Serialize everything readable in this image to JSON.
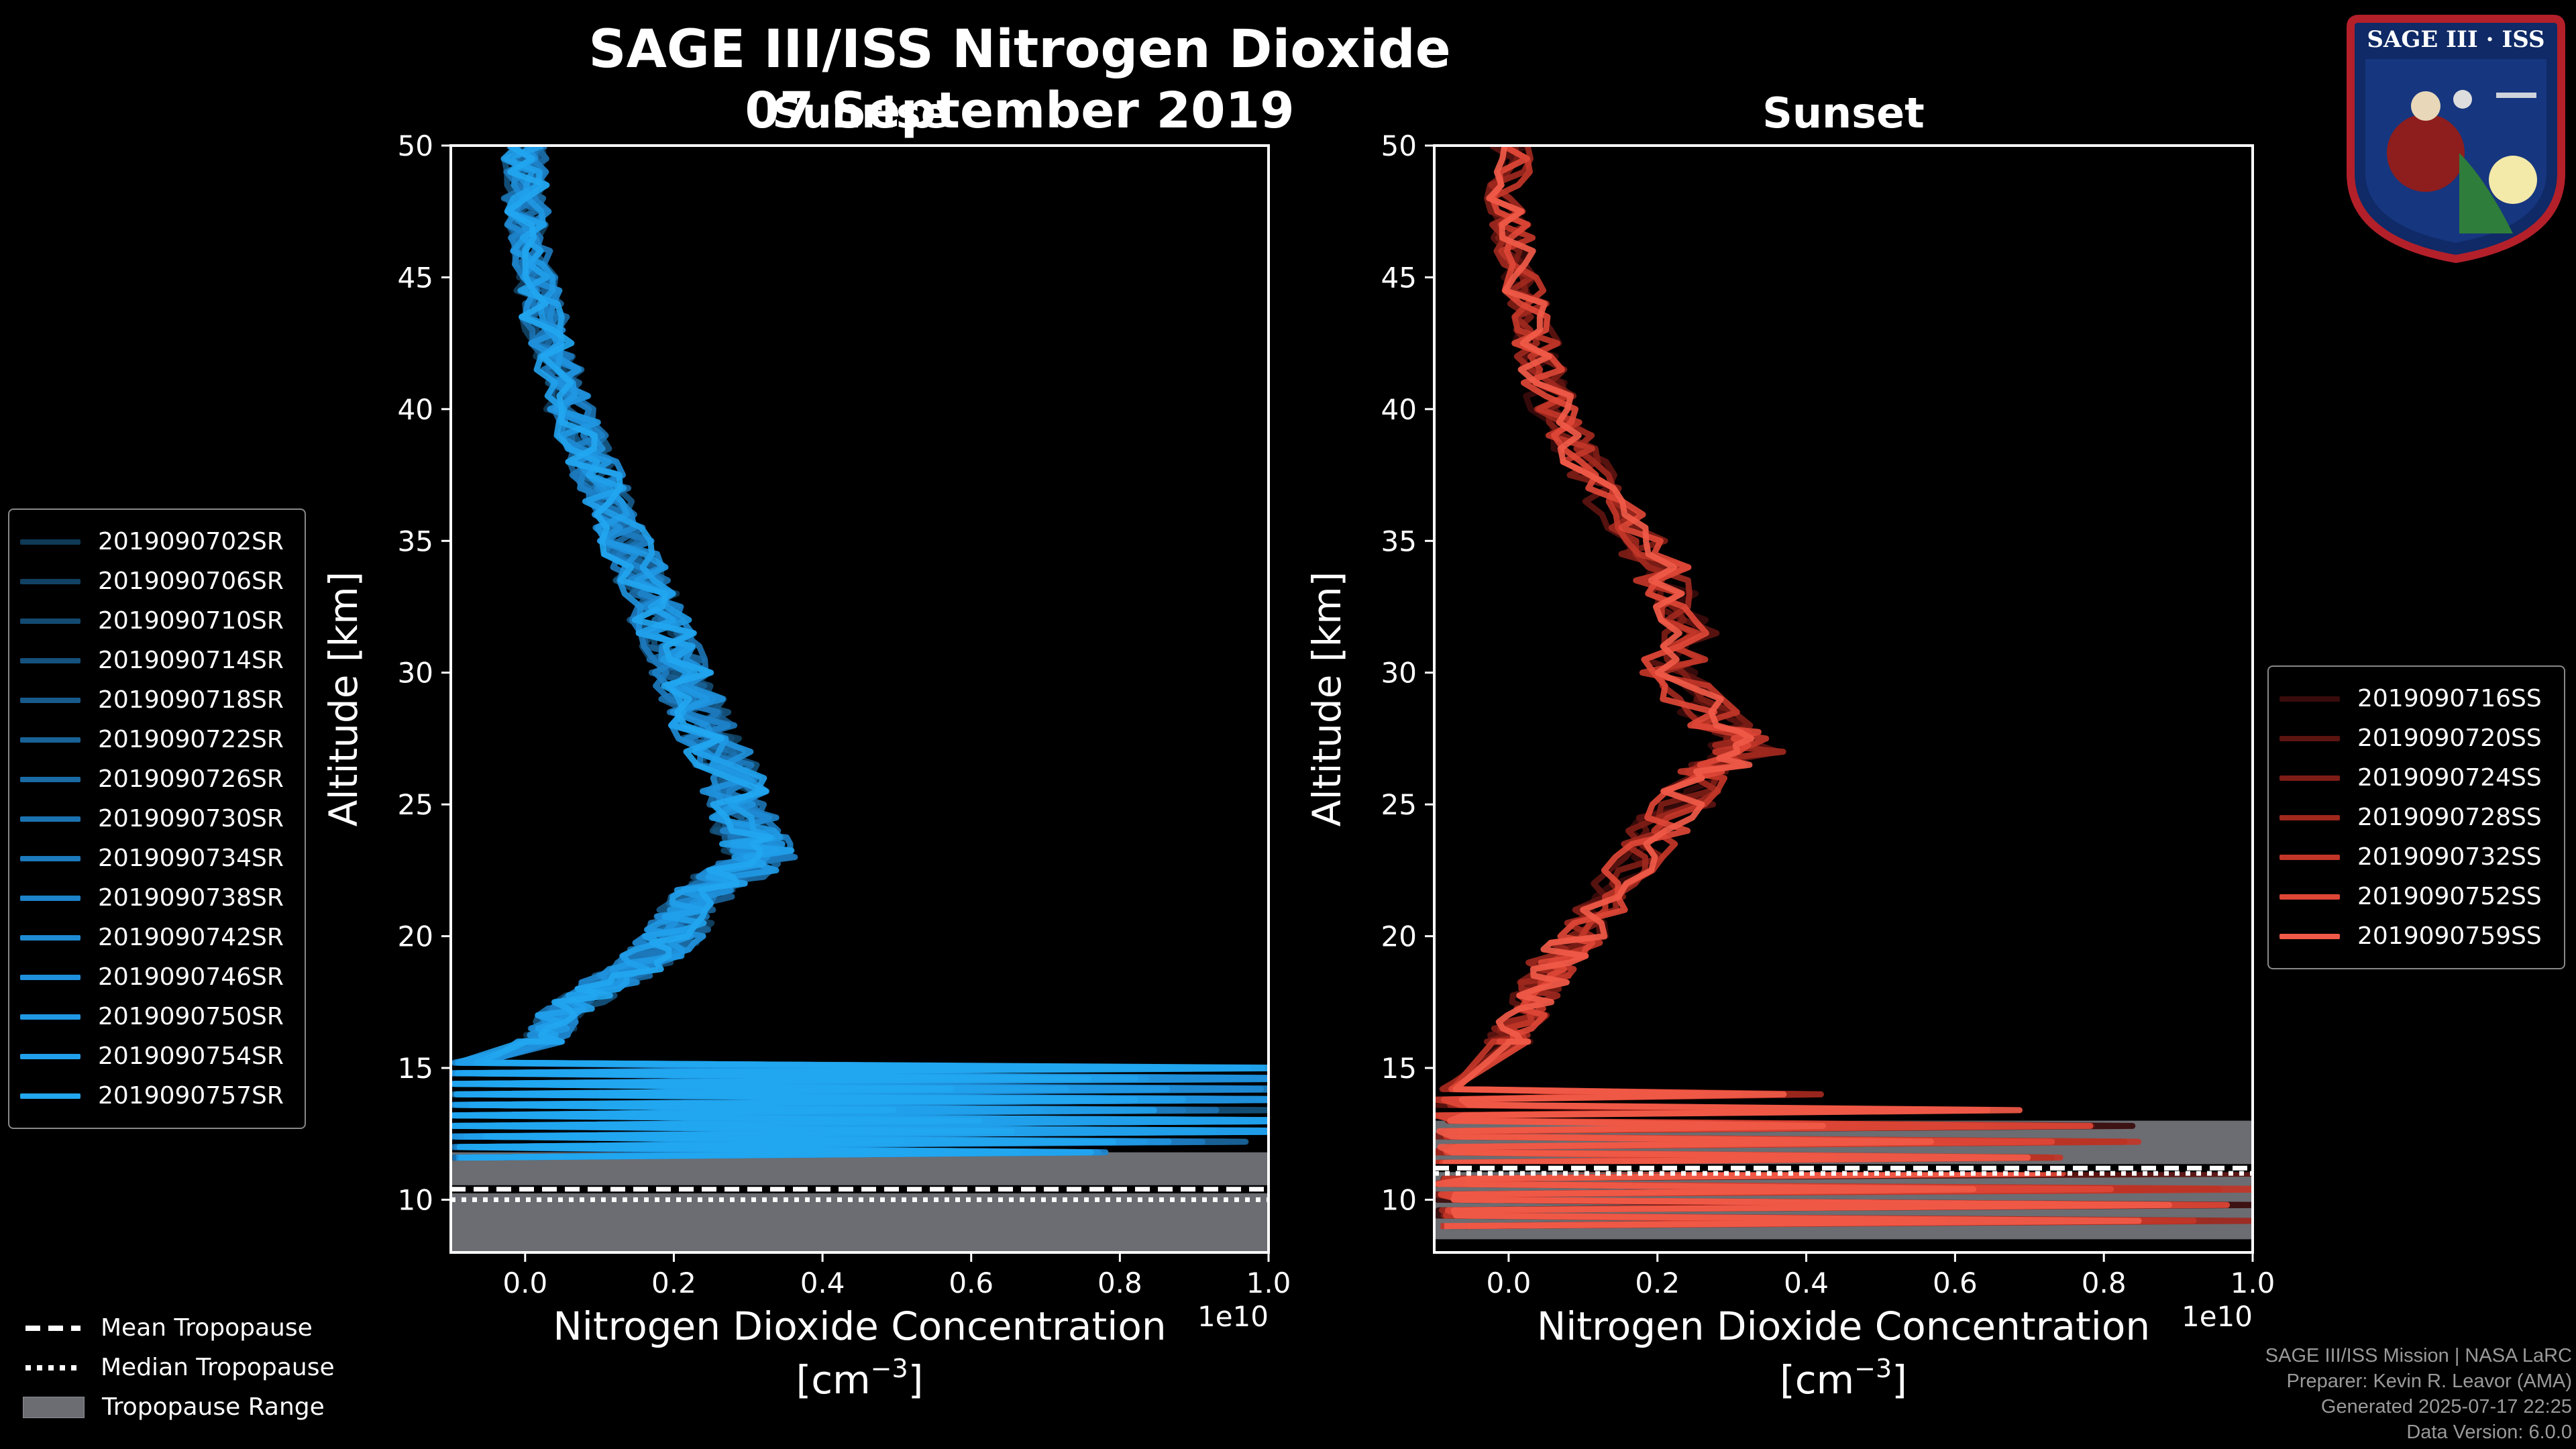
{
  "header": {
    "title": "SAGE III/ISS Nitrogen Dioxide",
    "date": "07 September 2019",
    "left_label": "Sunrise",
    "right_label": "Sunset"
  },
  "logo": {
    "text": "SAGE III · ISS"
  },
  "legend_sunrise": [
    {
      "label": "2019090702SR",
      "color": "#0f3a57"
    },
    {
      "label": "2019090706SR",
      "color": "#114263"
    },
    {
      "label": "2019090710SR",
      "color": "#134a70"
    },
    {
      "label": "2019090714SR",
      "color": "#15527d"
    },
    {
      "label": "2019090718SR",
      "color": "#175a8a"
    },
    {
      "label": "2019090722SR",
      "color": "#196297"
    },
    {
      "label": "2019090726SR",
      "color": "#1a6aa4"
    },
    {
      "label": "2019090730SR",
      "color": "#1b72b1"
    },
    {
      "label": "2019090734SR",
      "color": "#1c7abd"
    },
    {
      "label": "2019090738SR",
      "color": "#1d82c9"
    },
    {
      "label": "2019090742SR",
      "color": "#1e8ad3"
    },
    {
      "label": "2019090746SR",
      "color": "#1f91dc"
    },
    {
      "label": "2019090750SR",
      "color": "#2098e3"
    },
    {
      "label": "2019090754SR",
      "color": "#219fea"
    },
    {
      "label": "2019090757SR",
      "color": "#22a6f0"
    }
  ],
  "legend_sunset": [
    {
      "label": "2019090716SS",
      "color": "#3a0b0b"
    },
    {
      "label": "2019090720SS",
      "color": "#5c1410"
    },
    {
      "label": "2019090724SS",
      "color": "#7e1d16"
    },
    {
      "label": "2019090728SS",
      "color": "#a0281e"
    },
    {
      "label": "2019090732SS",
      "color": "#c23628"
    },
    {
      "label": "2019090752SS",
      "color": "#de4636"
    },
    {
      "label": "2019090759SS",
      "color": "#f15a48"
    }
  ],
  "legend_tropopause": {
    "mean": "Mean Tropopause",
    "median": "Median Tropopause",
    "range": "Tropopause Range"
  },
  "footer": {
    "line1": "SAGE III/ISS Mission | NASA LaRC",
    "line2": "Preparer: Kevin R. Leavor (AMA)",
    "line3": "Generated 2025-07-17 22:25",
    "line4": "Data Version: 6.0.0"
  },
  "chart_data": [
    {
      "type": "line",
      "title": "Sunrise",
      "xlabel": "Nitrogen Dioxide Concentration",
      "xunit_base": "[cm",
      "xunit_exp": "−3",
      "xunit_close": "]",
      "ylabel": "Altitude [km]",
      "offset_text": "1e10",
      "xlim": [
        -0.1,
        1.0
      ],
      "ylim": [
        8,
        50
      ],
      "xticks": [
        "0.0",
        "0.2",
        "0.4",
        "0.6",
        "0.8",
        "1.0"
      ],
      "xtick_values": [
        0.0,
        0.2,
        0.4,
        0.6,
        0.8,
        1.0
      ],
      "yticks": [
        10,
        15,
        20,
        25,
        30,
        35,
        40,
        45,
        50
      ],
      "tropopause": {
        "mean": 10.4,
        "median": 10.0,
        "range": [
          8,
          11.8
        ]
      },
      "profile_altitudes": [
        50,
        48,
        46,
        44,
        42,
        40,
        38,
        36,
        34,
        32,
        30,
        28,
        26,
        24,
        23,
        22,
        21,
        20,
        19,
        18,
        17,
        16
      ],
      "profile_values": [
        0.0,
        0.0,
        0.01,
        0.02,
        0.04,
        0.06,
        0.09,
        0.12,
        0.15,
        0.18,
        0.21,
        0.24,
        0.28,
        0.3,
        0.32,
        0.26,
        0.22,
        0.2,
        0.16,
        0.1,
        0.05,
        0.02
      ],
      "spike_altitudes": [
        15.0,
        14.6,
        14.2,
        13.8,
        13.4,
        13.0,
        12.6,
        12.2,
        11.8
      ],
      "spike_values": [
        0.95,
        1.0,
        1.0,
        1.0,
        0.9,
        1.0,
        1.0,
        0.85,
        0.7
      ]
    },
    {
      "type": "line",
      "title": "Sunset",
      "xlabel": "Nitrogen Dioxide Concentration",
      "xunit_base": "[cm",
      "xunit_exp": "−3",
      "xunit_close": "]",
      "ylabel": "Altitude [km]",
      "offset_text": "1e10",
      "xlim": [
        -0.1,
        1.0
      ],
      "ylim": [
        8,
        50
      ],
      "xticks": [
        "0.0",
        "0.2",
        "0.4",
        "0.6",
        "0.8",
        "1.0"
      ],
      "xtick_values": [
        0.0,
        0.2,
        0.4,
        0.6,
        0.8,
        1.0
      ],
      "yticks": [
        10,
        15,
        20,
        25,
        30,
        35,
        40,
        45,
        50
      ],
      "tropopause": {
        "mean": 11.2,
        "median": 11.0,
        "range": [
          8.5,
          13.0
        ]
      },
      "profile_altitudes": [
        50,
        48,
        46,
        44,
        42,
        40,
        38,
        36,
        34,
        32,
        30,
        28,
        27,
        26,
        24,
        22,
        20,
        19,
        18,
        17,
        16
      ],
      "profile_values": [
        0.0,
        0.0,
        0.01,
        0.03,
        0.04,
        0.06,
        0.1,
        0.15,
        0.2,
        0.24,
        0.22,
        0.28,
        0.32,
        0.26,
        0.2,
        0.15,
        0.1,
        0.06,
        0.04,
        0.02,
        0.0
      ],
      "spike_altitudes": [
        14.0,
        13.4,
        12.8,
        12.2,
        11.6,
        11.0,
        10.4,
        9.8,
        9.2
      ],
      "spike_values": [
        0.4,
        0.6,
        0.75,
        0.9,
        0.7,
        1.0,
        1.0,
        0.9,
        1.0
      ]
    }
  ]
}
